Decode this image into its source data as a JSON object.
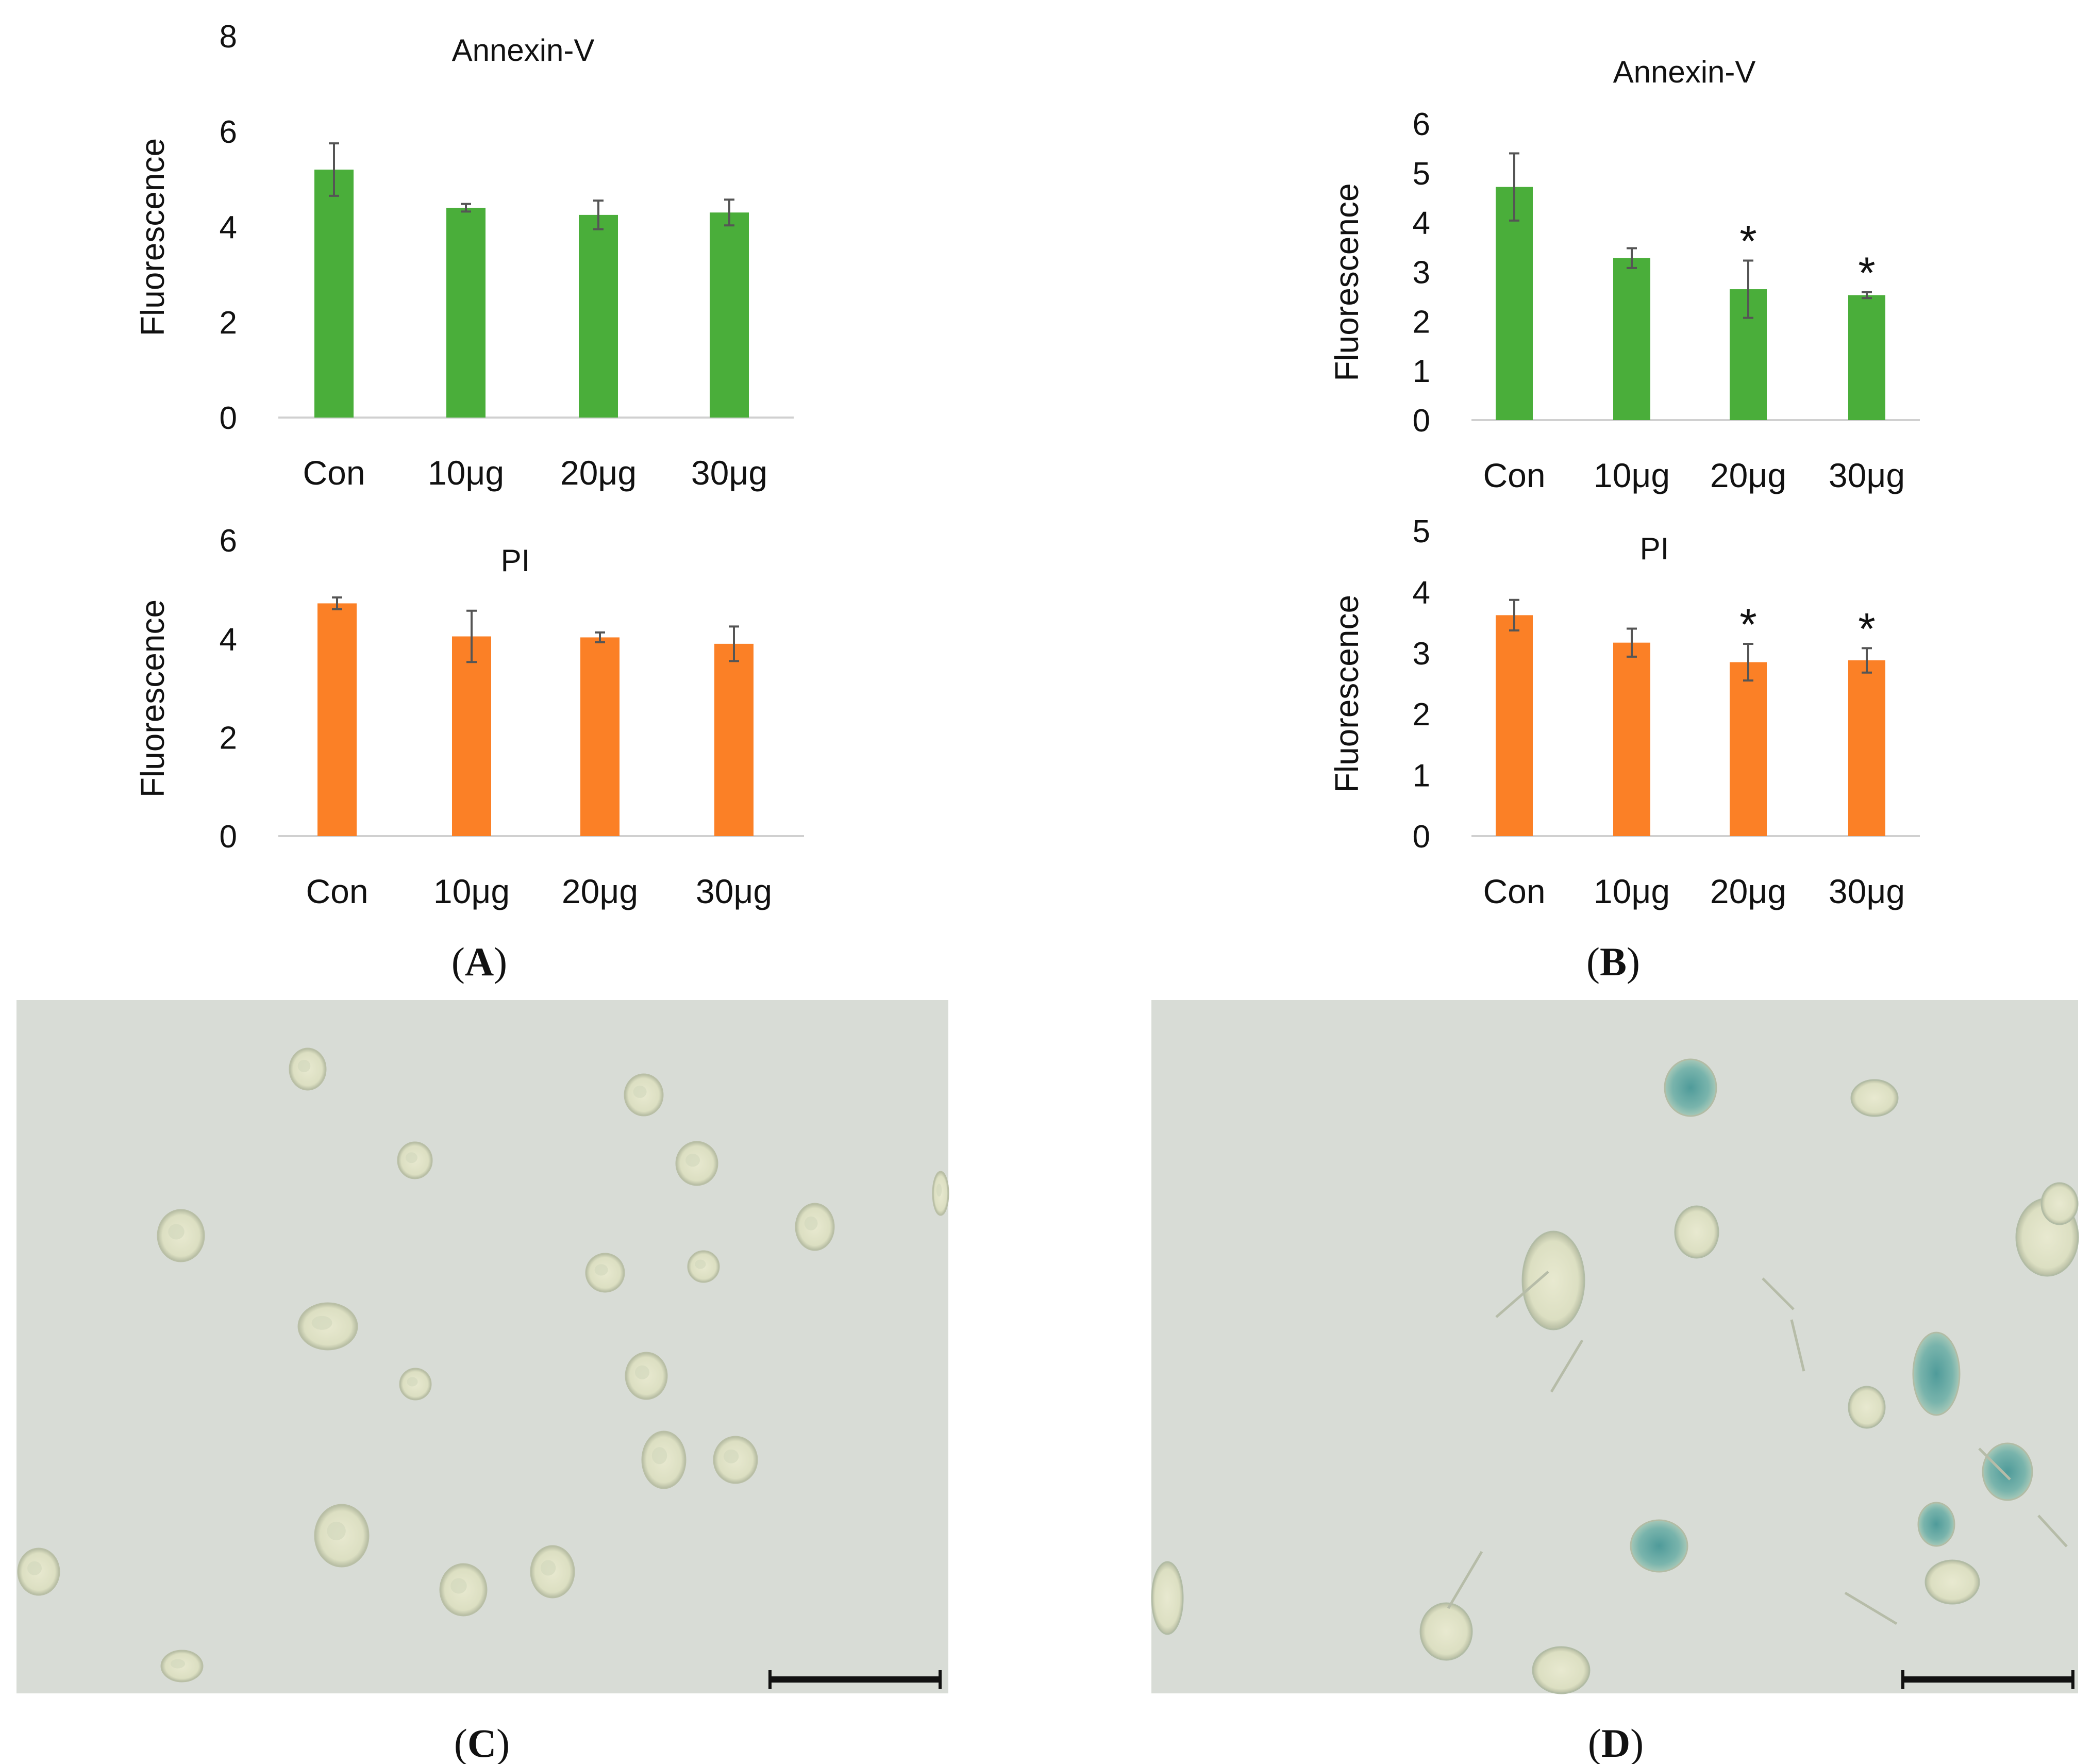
{
  "chart_data": [
    {
      "id": "A1",
      "type": "bar",
      "title": "Annexin-V",
      "ylabel": "Fluorescence",
      "categories": [
        "Con",
        "10μg",
        "20μg",
        "30μg"
      ],
      "values": [
        5.2,
        4.4,
        4.25,
        4.3
      ],
      "errors": [
        0.55,
        0.08,
        0.3,
        0.27
      ],
      "significance": [
        "",
        "",
        "",
        ""
      ],
      "ylim": [
        0,
        8
      ],
      "yticks": [
        "0",
        "2",
        "4",
        "6",
        "8"
      ],
      "color": "#4aae3a"
    },
    {
      "id": "A2",
      "type": "bar",
      "title": "PI",
      "ylabel": "Fluorescence",
      "categories": [
        "Con",
        "10μg",
        "20μg",
        "30μg"
      ],
      "values": [
        4.72,
        4.05,
        4.03,
        3.9
      ],
      "errors": [
        0.12,
        0.52,
        0.1,
        0.35
      ],
      "significance": [
        "",
        "",
        "",
        ""
      ],
      "ylim": [
        0,
        6
      ],
      "yticks": [
        "0",
        "2",
        "4",
        "6"
      ],
      "color": "#fb8026"
    },
    {
      "id": "B1",
      "type": "bar",
      "title": "Annexin-V",
      "ylabel": "Fluorescence",
      "categories": [
        "Con",
        "10μg",
        "20μg",
        "30μg"
      ],
      "values": [
        4.72,
        3.28,
        2.65,
        2.53
      ],
      "errors": [
        0.68,
        0.2,
        0.58,
        0.06
      ],
      "significance": [
        "",
        "",
        "*",
        "*"
      ],
      "ylim": [
        0,
        6
      ],
      "yticks": [
        "0",
        "1",
        "2",
        "3",
        "4",
        "5",
        "6"
      ],
      "color": "#4aae3a"
    },
    {
      "id": "B2",
      "type": "bar",
      "title": "PI",
      "ylabel": "Fluorescence",
      "categories": [
        "Con",
        "10μg",
        "20μg",
        "30μg"
      ],
      "values": [
        3.62,
        3.17,
        2.85,
        2.88
      ],
      "errors": [
        0.25,
        0.23,
        0.3,
        0.2
      ],
      "significance": [
        "",
        "",
        "*",
        "*"
      ],
      "ylim": [
        0,
        5
      ],
      "yticks": [
        "0",
        "1",
        "2",
        "3",
        "4",
        "5"
      ],
      "color": "#fb8026"
    }
  ],
  "panel_labels": {
    "a": {
      "open": "(",
      "letter": "A",
      "close": ")"
    },
    "b": {
      "open": "(",
      "letter": "B",
      "close": ")"
    },
    "c": {
      "open": "(",
      "letter": "C",
      "close": ")"
    },
    "d": {
      "open": "(",
      "letter": "D",
      "close": ")"
    }
  },
  "colors": {
    "micrograph_background": "#d8dcd6",
    "cell_fill": "#e2e4c8",
    "cell_stroke": "#b9bfa6",
    "blue_stain": "#5fa3a0",
    "scale_bar": "#111111"
  }
}
